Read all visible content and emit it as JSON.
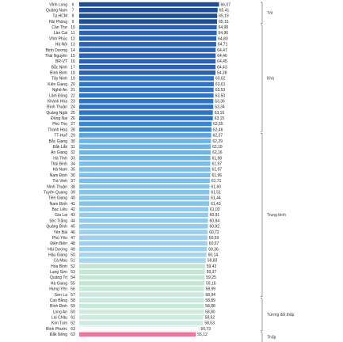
{
  "chart_data": {
    "type": "bar",
    "orientation": "horizontal",
    "xlim": [
      0,
      70
    ],
    "grid": false,
    "rows": [
      {
        "name": "Vĩnh Long",
        "rank": "6",
        "value": 66.07,
        "value_label": "66,07",
        "color": "#1f4e99"
      },
      {
        "name": "Quảng Nam",
        "rank": "7",
        "value": 65.41,
        "value_label": "65,41",
        "color": "#1f4e99"
      },
      {
        "name": "Tp.HCM",
        "rank": "8",
        "value": 65.19,
        "value_label": "65,19",
        "color": "#1f4e99"
      },
      {
        "name": "Hải Phòng",
        "rank": "9",
        "value": 65.15,
        "value_label": "65,15",
        "color": "#1f4e99"
      },
      {
        "name": "Cần Thơ",
        "rank": "10",
        "value": 64.98,
        "value_label": "64,98",
        "color": "#2b62b3"
      },
      {
        "name": "Lào Cai",
        "rank": "11",
        "value": 64.96,
        "value_label": "64,96",
        "color": "#2b62b3"
      },
      {
        "name": "Vĩnh Phúc",
        "rank": "12",
        "value": 64.8,
        "value_label": "64,80",
        "color": "#2b62b3"
      },
      {
        "name": "Hà Nội",
        "rank": "13",
        "value": 64.71,
        "value_label": "64,71",
        "color": "#2b62b3"
      },
      {
        "name": "Bình Dương",
        "rank": "14",
        "value": 64.47,
        "value_label": "64,47",
        "color": "#2b62b3"
      },
      {
        "name": "Thái Nguyên",
        "rank": "15",
        "value": 64.46,
        "value_label": "64,46",
        "color": "#2b62b3"
      },
      {
        "name": "BR-VT",
        "rank": "16",
        "value": 64.45,
        "value_label": "64,45",
        "color": "#2b62b3"
      },
      {
        "name": "Bắc Ninh",
        "rank": "17",
        "value": 64.43,
        "value_label": "64,43",
        "color": "#2b62b3"
      },
      {
        "name": "Bình Định",
        "rank": "18",
        "value": 64.38,
        "value_label": "64,38",
        "color": "#2b62b3"
      },
      {
        "name": "Tây Ninh",
        "rank": "19",
        "value": 63.62,
        "value_label": "63,62",
        "color": "#2f75c6"
      },
      {
        "name": "Kiên Giang",
        "rank": "20",
        "value": 63.61,
        "value_label": "63,61",
        "color": "#2f75c6"
      },
      {
        "name": "Nghệ An",
        "rank": "21",
        "value": 63.53,
        "value_label": "63,53",
        "color": "#2f75c6"
      },
      {
        "name": "Lâm Đồng",
        "rank": "22",
        "value": 63.5,
        "value_label": "63,50",
        "color": "#2f75c6"
      },
      {
        "name": "Khánh Hòa",
        "rank": "23",
        "value": 63.36,
        "value_label": "63,36",
        "color": "#2f75c6"
      },
      {
        "name": "Bình Thuận",
        "rank": "24",
        "value": 63.34,
        "value_label": "63,34",
        "color": "#2f75c6"
      },
      {
        "name": "Quảng Ngãi",
        "rank": "25",
        "value": 63.16,
        "value_label": "63,16",
        "color": "#2f75c6"
      },
      {
        "name": "Đồng Nai",
        "rank": "26",
        "value": 63.15,
        "value_label": "63,15",
        "color": "#2f75c6"
      },
      {
        "name": "Phú Thọ",
        "rank": "27",
        "value": 62.55,
        "value_label": "62,55",
        "color": "#3a86d0"
      },
      {
        "name": "Thanh Hóa",
        "rank": "28",
        "value": 62.46,
        "value_label": "62,46",
        "color": "#3a86d0"
      },
      {
        "name": "TT-Huế",
        "rank": "29",
        "value": 62.37,
        "value_label": "62,37",
        "color": "#5aa3dc"
      },
      {
        "name": "Bắc Giang",
        "rank": "30",
        "value": 62.29,
        "value_label": "62,29",
        "color": "#6db3e3"
      },
      {
        "name": "Đắk Lắk",
        "rank": "31",
        "value": 62.19,
        "value_label": "62,19",
        "color": "#6db3e3"
      },
      {
        "name": "An Giang",
        "rank": "32",
        "value": 62.16,
        "value_label": "62,16",
        "color": "#6db3e3"
      },
      {
        "name": "Hà Tĩnh",
        "rank": "33",
        "value": 61.98,
        "value_label": "61,98",
        "color": "#6db3e3"
      },
      {
        "name": "Thái Bình",
        "rank": "34",
        "value": 61.97,
        "value_label": "61,97",
        "color": "#7dbde6"
      },
      {
        "name": "Hà Nam",
        "rank": "35",
        "value": 61.97,
        "value_label": "61,97",
        "color": "#7dbde6"
      },
      {
        "name": "Nam Định",
        "rank": "36",
        "value": 61.96,
        "value_label": "61,96",
        "color": "#7dbde6"
      },
      {
        "name": "Trà Vinh",
        "rank": "37",
        "value": 61.71,
        "value_label": "61,71",
        "color": "#7dbde6"
      },
      {
        "name": "Ninh Thuận",
        "rank": "38",
        "value": 61.6,
        "value_label": "61,60",
        "color": "#87c4e9"
      },
      {
        "name": "Tuyên Quang",
        "rank": "39",
        "value": 61.51,
        "value_label": "61,51",
        "color": "#87c4e9"
      },
      {
        "name": "Tiền Giang",
        "rank": "40",
        "value": 61.44,
        "value_label": "61,44",
        "color": "#87c4e9"
      },
      {
        "name": "Nam Định",
        "rank": "41",
        "value": 61.43,
        "value_label": "61,43",
        "color": "#87c4e9"
      },
      {
        "name": "Bạc Liêu",
        "rank": "42",
        "value": 61.03,
        "value_label": "61,03",
        "color": "#92caeb"
      },
      {
        "name": "Gia Lai",
        "rank": "43",
        "value": 60.91,
        "value_label": "60,91",
        "color": "#92caeb"
      },
      {
        "name": "Sóc Trăng",
        "rank": "44",
        "value": 60.84,
        "value_label": "60,84",
        "color": "#92caeb"
      },
      {
        "name": "Quảng Bình",
        "rank": "45",
        "value": 60.82,
        "value_label": "60,82",
        "color": "#92caeb"
      },
      {
        "name": "Yên Bái",
        "rank": "46",
        "value": 60.72,
        "value_label": "60,72",
        "color": "#9ed0ed"
      },
      {
        "name": "Phú Yên",
        "rank": "47",
        "value": 60.59,
        "value_label": "60,59",
        "color": "#9ed0ed"
      },
      {
        "name": "Điện Biên",
        "rank": "48",
        "value": 60.57,
        "value_label": "60,57",
        "color": "#9ed0ed"
      },
      {
        "name": "Hải Dương",
        "rank": "49",
        "value": 60.36,
        "value_label": "60,36",
        "color": "#9ed0ed"
      },
      {
        "name": "Hậu Giang",
        "rank": "50",
        "value": 60.14,
        "value_label": "60,14",
        "color": "#a8d5ef"
      },
      {
        "name": "Cà Mau",
        "rank": "51",
        "value": 59.83,
        "value_label": "59,83",
        "color": "#a8d5ef"
      },
      {
        "name": "Hòa Bình",
        "rank": "52",
        "value": 59.42,
        "value_label": "59,42",
        "color": "#c3e6d6"
      },
      {
        "name": "Lạng Sơn",
        "rank": "53",
        "value": 59.37,
        "value_label": "59,37",
        "color": "#c3e6d6"
      },
      {
        "name": "Quảng Trị",
        "rank": "54",
        "value": 59.25,
        "value_label": "59,25",
        "color": "#c3e6d6"
      },
      {
        "name": "Hà Giang",
        "rank": "55",
        "value": 59.16,
        "value_label": "59,16",
        "color": "#c3e6d6"
      },
      {
        "name": "Hưng Yên",
        "rank": "56",
        "value": 58.99,
        "value_label": "58,99",
        "color": "#c9e9dc"
      },
      {
        "name": "Sơn La",
        "rank": "57",
        "value": 58.94,
        "value_label": "58,94",
        "color": "#c9e9dc"
      },
      {
        "name": "Cao Bằng",
        "rank": "58",
        "value": 58.89,
        "value_label": "58,89",
        "color": "#c9e9dc"
      },
      {
        "name": "Bình Định",
        "rank": "59",
        "value": 58.88,
        "value_label": "58,88",
        "color": "#c9e9dc"
      },
      {
        "name": "Long An",
        "rank": "60",
        "value": 58.8,
        "value_label": "58,80",
        "color": "#cfebe0"
      },
      {
        "name": "Lai Châu",
        "rank": "61",
        "value": 58.62,
        "value_label": "58,62",
        "color": "#cfebe0"
      },
      {
        "name": "Kon Tum",
        "rank": "62",
        "value": 58.53,
        "value_label": "58,53",
        "color": "#cfebe0"
      },
      {
        "name": "Bình Phước",
        "rank": "63",
        "value": 56.73,
        "value_label": "56,73",
        "color": "#ffffff"
      },
      {
        "name": "Đắk Nông",
        "rank": "63",
        "value": 55.12,
        "value_label": "55,12",
        "color": "#e8799a"
      }
    ],
    "groups": [
      {
        "label": "Tốt",
        "from": 0,
        "to": 3
      },
      {
        "label": "Khá",
        "from": 4,
        "to": 22
      },
      {
        "label": "Trung bình",
        "from": 23,
        "to": 51
      },
      {
        "label": "Tương đối thấp",
        "from": 52,
        "to": 57
      },
      {
        "label": "Thấp",
        "from": 58,
        "to": 59
      }
    ]
  }
}
